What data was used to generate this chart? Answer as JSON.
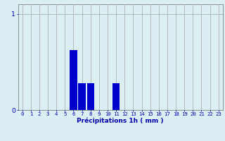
{
  "hours": [
    0,
    1,
    2,
    3,
    4,
    5,
    6,
    7,
    8,
    9,
    10,
    11,
    12,
    13,
    14,
    15,
    16,
    17,
    18,
    19,
    20,
    21,
    22,
    23
  ],
  "values": [
    0,
    0,
    0,
    0,
    0,
    0,
    0.62,
    0.28,
    0.28,
    0,
    0,
    0.28,
    0,
    0,
    0,
    0,
    0,
    0,
    0,
    0,
    0,
    0,
    0,
    0
  ],
  "bar_color": "#0000cc",
  "bg_color": "#daeef3",
  "grid_color": "#b0b0b0",
  "axis_color": "#0000aa",
  "xlabel": "Précipitations 1h ( mm )",
  "ylim": [
    0,
    1.1
  ],
  "xlim": [
    -0.5,
    23.5
  ],
  "yticks": [
    0,
    1
  ],
  "xticks": [
    0,
    1,
    2,
    3,
    4,
    5,
    6,
    7,
    8,
    9,
    10,
    11,
    12,
    13,
    14,
    15,
    16,
    17,
    18,
    19,
    20,
    21,
    22,
    23
  ],
  "tick_fontsize": 5.2,
  "label_fontsize": 6.5
}
